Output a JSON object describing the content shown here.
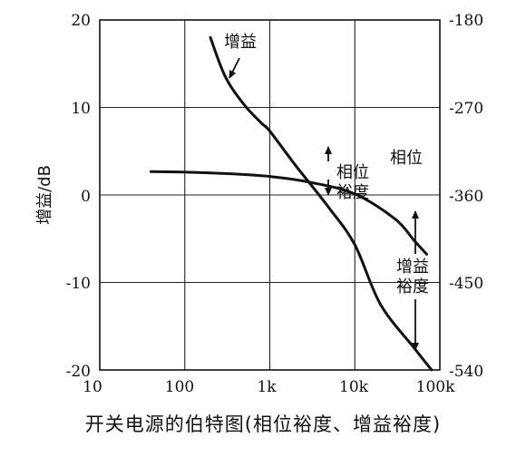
{
  "chart_data": {
    "type": "line",
    "xscale": "log",
    "xlim": [
      10,
      100000
    ],
    "ylim": [
      -20,
      20
    ],
    "y2lim": [
      -540,
      -180
    ],
    "grid": true,
    "x_ticks": [
      "10",
      "100",
      "1k",
      "10k",
      "100k"
    ],
    "y_ticks": [
      "20",
      "10",
      "0",
      "-10",
      "-20"
    ],
    "y2_ticks": [
      "-180",
      "-270",
      "-360",
      "-450",
      "-540"
    ],
    "ylabel": "增益/dB",
    "series": [
      {
        "name": "增益",
        "axis": "left",
        "x": [
          200,
          300,
          500,
          800,
          1000,
          2000,
          5000,
          10000,
          20000,
          50000,
          80000
        ],
        "y": [
          18,
          13.5,
          10.3,
          8.2,
          7.3,
          3.4,
          -1.5,
          -5.7,
          -12.5,
          -17.5,
          -20
        ]
      },
      {
        "name": "相位",
        "axis": "right",
        "x": [
          40,
          100,
          300,
          1000,
          3000,
          10000,
          30000,
          50000,
          70000
        ],
        "y": [
          -336,
          -336.5,
          -338,
          -341,
          -347,
          -359,
          -385,
          -407,
          -421
        ]
      }
    ],
    "annotations": [
      {
        "text": "增益",
        "type": "label-arrow"
      },
      {
        "text": "相位",
        "type": "label"
      },
      {
        "text": "相位裕度",
        "type": "double-arrow"
      },
      {
        "text": "增益裕度",
        "type": "double-arrow"
      }
    ],
    "caption": "开关电源的伯特图(相位裕度、增益裕度)"
  }
}
